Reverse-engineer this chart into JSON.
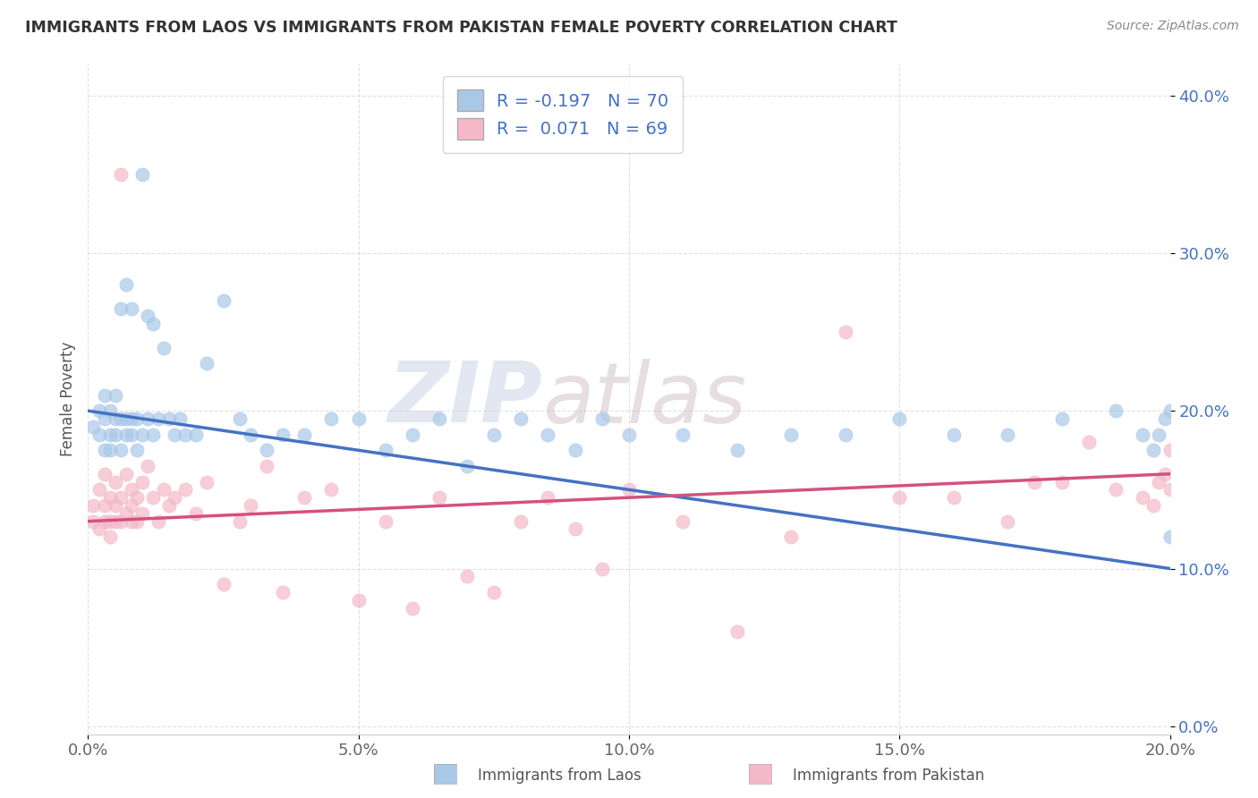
{
  "title": "IMMIGRANTS FROM LAOS VS IMMIGRANTS FROM PAKISTAN FEMALE POVERTY CORRELATION CHART",
  "source": "Source: ZipAtlas.com",
  "xlabel_laos": "Immigrants from Laos",
  "xlabel_pakistan": "Immigrants from Pakistan",
  "ylabel": "Female Poverty",
  "legend_laos_r": "R = -0.197",
  "legend_laos_n": "N = 70",
  "legend_pakistan_r": "R =  0.071",
  "legend_pakistan_n": "N = 69",
  "color_laos": "#a8c8e8",
  "color_pakistan": "#f4b8c8",
  "trendline_laos": "#4472c4",
  "trendline_pakistan": "#d45080",
  "watermark_zip": "ZIP",
  "watermark_atlas": "atlas",
  "xlim": [
    0.0,
    0.2
  ],
  "ylim": [
    -0.005,
    0.42
  ],
  "xticks": [
    0.0,
    0.05,
    0.1,
    0.15,
    0.2
  ],
  "yticks": [
    0.0,
    0.1,
    0.2,
    0.3,
    0.4
  ],
  "background_color": "#ffffff",
  "laos_x": [
    0.001,
    0.002,
    0.002,
    0.003,
    0.003,
    0.003,
    0.004,
    0.004,
    0.004,
    0.005,
    0.005,
    0.005,
    0.006,
    0.006,
    0.006,
    0.007,
    0.007,
    0.007,
    0.008,
    0.008,
    0.008,
    0.009,
    0.009,
    0.01,
    0.01,
    0.011,
    0.011,
    0.012,
    0.012,
    0.013,
    0.014,
    0.015,
    0.016,
    0.017,
    0.018,
    0.02,
    0.022,
    0.025,
    0.028,
    0.03,
    0.033,
    0.036,
    0.04,
    0.045,
    0.05,
    0.055,
    0.06,
    0.065,
    0.07,
    0.075,
    0.08,
    0.085,
    0.09,
    0.095,
    0.1,
    0.11,
    0.12,
    0.13,
    0.14,
    0.15,
    0.16,
    0.17,
    0.18,
    0.19,
    0.195,
    0.197,
    0.198,
    0.199,
    0.2,
    0.2
  ],
  "laos_y": [
    0.19,
    0.2,
    0.185,
    0.195,
    0.175,
    0.21,
    0.185,
    0.2,
    0.175,
    0.195,
    0.185,
    0.21,
    0.265,
    0.195,
    0.175,
    0.28,
    0.195,
    0.185,
    0.265,
    0.195,
    0.185,
    0.195,
    0.175,
    0.35,
    0.185,
    0.26,
    0.195,
    0.255,
    0.185,
    0.195,
    0.24,
    0.195,
    0.185,
    0.195,
    0.185,
    0.185,
    0.23,
    0.27,
    0.195,
    0.185,
    0.175,
    0.185,
    0.185,
    0.195,
    0.195,
    0.175,
    0.185,
    0.195,
    0.165,
    0.185,
    0.195,
    0.185,
    0.175,
    0.195,
    0.185,
    0.185,
    0.175,
    0.185,
    0.185,
    0.195,
    0.185,
    0.185,
    0.195,
    0.2,
    0.185,
    0.175,
    0.185,
    0.195,
    0.2,
    0.12
  ],
  "pakistan_x": [
    0.001,
    0.001,
    0.002,
    0.002,
    0.003,
    0.003,
    0.003,
    0.004,
    0.004,
    0.004,
    0.005,
    0.005,
    0.005,
    0.006,
    0.006,
    0.006,
    0.007,
    0.007,
    0.008,
    0.008,
    0.008,
    0.009,
    0.009,
    0.01,
    0.01,
    0.011,
    0.012,
    0.013,
    0.014,
    0.015,
    0.016,
    0.018,
    0.02,
    0.022,
    0.025,
    0.028,
    0.03,
    0.033,
    0.036,
    0.04,
    0.045,
    0.05,
    0.055,
    0.06,
    0.065,
    0.07,
    0.075,
    0.08,
    0.085,
    0.09,
    0.095,
    0.1,
    0.11,
    0.12,
    0.13,
    0.14,
    0.15,
    0.16,
    0.17,
    0.175,
    0.18,
    0.185,
    0.19,
    0.195,
    0.197,
    0.198,
    0.199,
    0.2,
    0.2
  ],
  "pakistan_y": [
    0.14,
    0.13,
    0.15,
    0.125,
    0.14,
    0.13,
    0.16,
    0.145,
    0.13,
    0.12,
    0.14,
    0.155,
    0.13,
    0.35,
    0.145,
    0.13,
    0.16,
    0.135,
    0.15,
    0.14,
    0.13,
    0.145,
    0.13,
    0.155,
    0.135,
    0.165,
    0.145,
    0.13,
    0.15,
    0.14,
    0.145,
    0.15,
    0.135,
    0.155,
    0.09,
    0.13,
    0.14,
    0.165,
    0.085,
    0.145,
    0.15,
    0.08,
    0.13,
    0.075,
    0.145,
    0.095,
    0.085,
    0.13,
    0.145,
    0.125,
    0.1,
    0.15,
    0.13,
    0.06,
    0.12,
    0.25,
    0.145,
    0.145,
    0.13,
    0.155,
    0.155,
    0.18,
    0.15,
    0.145,
    0.14,
    0.155,
    0.16,
    0.175,
    0.15
  ]
}
